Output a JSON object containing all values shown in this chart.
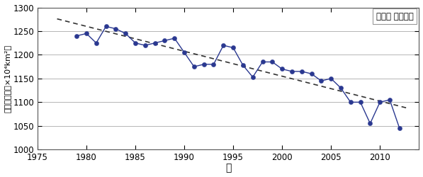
{
  "years": [
    1979,
    1980,
    1981,
    1982,
    1983,
    1984,
    1985,
    1986,
    1987,
    1988,
    1989,
    1990,
    1991,
    1992,
    1993,
    1994,
    1995,
    1996,
    1997,
    1998,
    1999,
    2000,
    2001,
    2002,
    2003,
    2004,
    2005,
    2006,
    2007,
    2008,
    2009,
    2010,
    2011,
    2012
  ],
  "values": [
    1240,
    1245,
    1225,
    1260,
    1255,
    1245,
    1225,
    1220,
    1225,
    1230,
    1235,
    1205,
    1175,
    1180,
    1180,
    1220,
    1215,
    1178,
    1153,
    1185,
    1185,
    1170,
    1165,
    1165,
    1160,
    1145,
    1150,
    1130,
    1100,
    1100,
    1055,
    1100,
    1105,
    1045
  ],
  "line_color": "#2a3890",
  "marker_color": "#2a3890",
  "trend_color": "#333333",
  "xlabel": "年",
  "ylabel": "海氷域面積（×10⁴km²）",
  "legend_text": "北極域 年平均値",
  "xlim": [
    1975,
    2014
  ],
  "ylim": [
    1000,
    1300
  ],
  "yticks": [
    1000,
    1050,
    1100,
    1150,
    1200,
    1250,
    1300
  ],
  "xticks": [
    1975,
    1980,
    1985,
    1990,
    1995,
    2000,
    2005,
    2010
  ],
  "grid_color": "#aaaaaa",
  "background_color": "#ffffff"
}
